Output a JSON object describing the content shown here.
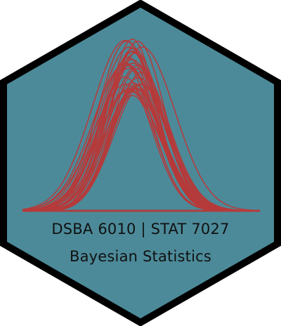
{
  "sticker": {
    "course_codes": "DSBA 6010 | STAT 7027",
    "course_title": "Bayesian Statistics",
    "logo_shape": "hexagon",
    "motif": "overlapping bell-shaped density curves",
    "colors": {
      "background": "#4c8a99",
      "border": "#000000",
      "curves": "#b63a3a",
      "text": "#111111"
    }
  }
}
